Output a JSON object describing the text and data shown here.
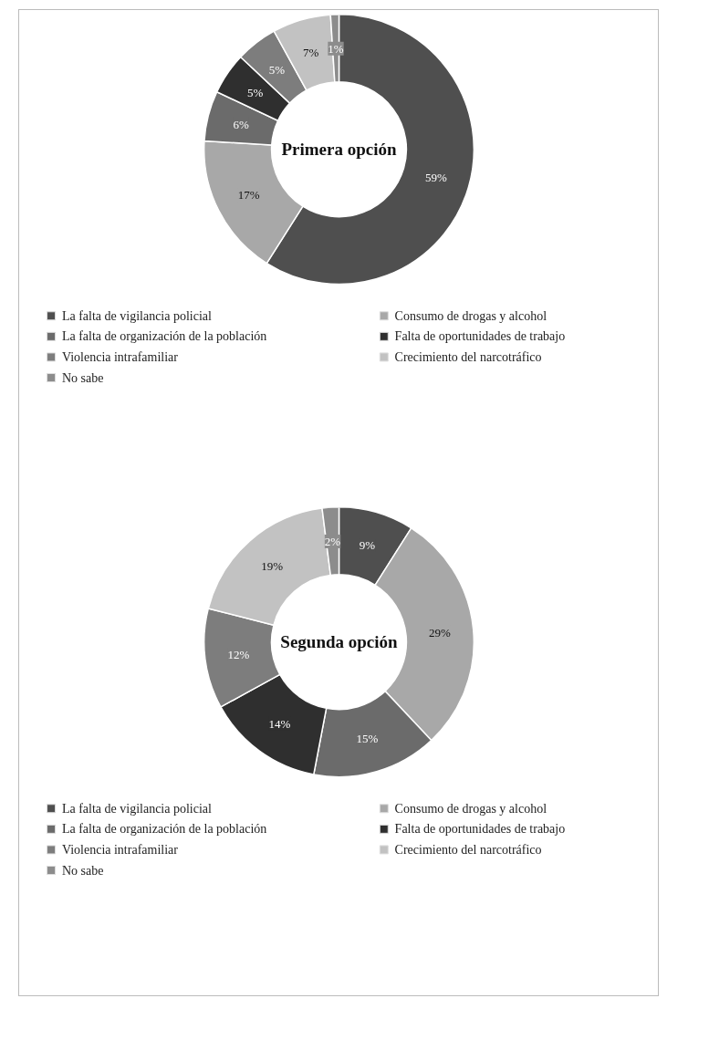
{
  "chart_data": [
    {
      "type": "donut",
      "title": "Primera opción",
      "categories": [
        "La falta de vigilancia policial",
        "Consumo de drogas y alcohol",
        "La falta de organización de la población",
        "Falta de oportunidades de trabajo",
        "Violencia intrafamiliar",
        "Crecimiento del narcotráfico",
        "No sabe"
      ],
      "values": [
        59,
        17,
        6,
        5,
        5,
        7,
        1
      ],
      "value_labels": [
        "59%",
        "17%",
        "6%",
        "5%",
        "5%",
        "7%",
        "1%"
      ],
      "colors": [
        "#4f4f4f",
        "#a8a8a8",
        "#6b6b6b",
        "#2f2f2f",
        "#7d7d7d",
        "#c2c2c2",
        "#8c8c8c"
      ],
      "legend": "bottom"
    },
    {
      "type": "donut",
      "title": "Segunda opción",
      "categories": [
        "La falta de vigilancia policial",
        "Consumo de drogas y alcohol",
        "La falta de organización de la población",
        "Falta de oportunidades de trabajo",
        "Violencia intrafamiliar",
        "Crecimiento del narcotráfico",
        "No sabe"
      ],
      "values": [
        9,
        29,
        15,
        14,
        12,
        19,
        2
      ],
      "value_labels": [
        "9%",
        "29%",
        "15%",
        "14%",
        "12%",
        "19%",
        "2%"
      ],
      "colors": [
        "#4f4f4f",
        "#a8a8a8",
        "#6b6b6b",
        "#2f2f2f",
        "#7d7d7d",
        "#c2c2c2",
        "#8c8c8c"
      ],
      "legend": "bottom"
    }
  ]
}
